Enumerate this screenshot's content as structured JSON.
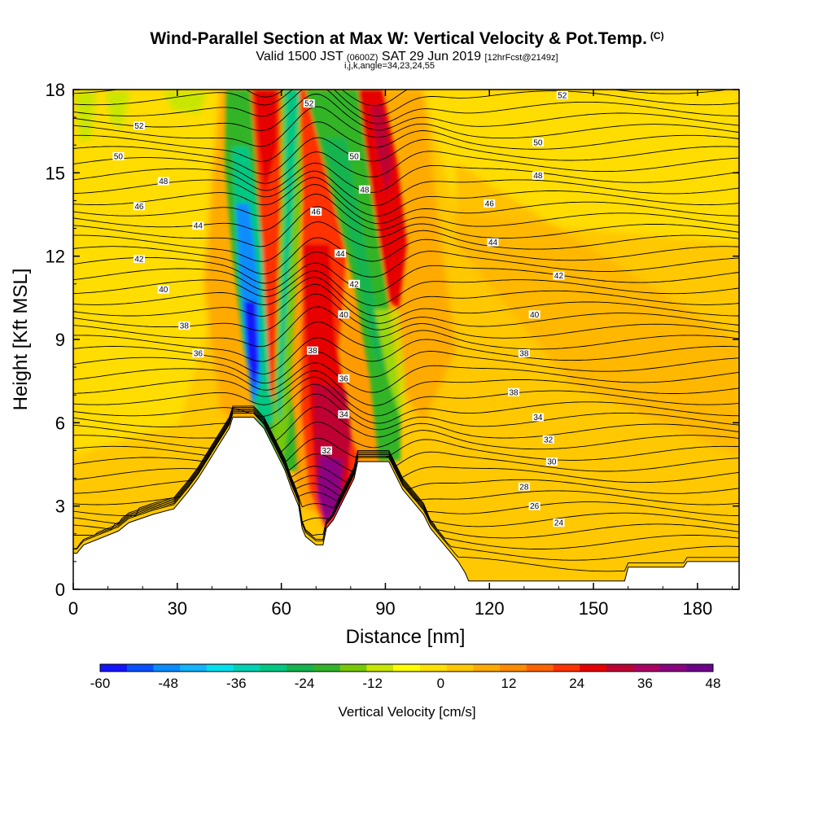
{
  "chart_data": {
    "type": "heatmap",
    "title": "Wind-Parallel Section at Max W: Vertical Velocity & Pot.Temp.",
    "copyright": "(C)",
    "subtitle_main": "Valid 1500 JST",
    "subtitle_utc": "(0600Z)",
    "subtitle_date": "SAT 29 Jun 2019",
    "subtitle_fcst": "[12hrFcst@2149z]",
    "subtitle2": "i,j,k,angle=34,23,24,55",
    "xlabel": "Distance [nm]",
    "ylabel": "Height [Kft MSL]",
    "xlim": [
      0,
      192
    ],
    "ylim": [
      0,
      18
    ],
    "xticks": [
      "0",
      "30",
      "60",
      "90",
      "120",
      "150",
      "180"
    ],
    "yticks": [
      "0",
      "3",
      "6",
      "9",
      "12",
      "15",
      "18"
    ],
    "colorbar_label": "Vertical Velocity [cm/s]",
    "colorbar_ticks": [
      "-60",
      "-48",
      "-36",
      "-24",
      "-12",
      "0",
      "12",
      "24",
      "36",
      "48"
    ],
    "colorbar_range": [
      -60,
      48
    ],
    "colorbar_colors": [
      "#1414ff",
      "#0a50ff",
      "#0a8cff",
      "#14b4ff",
      "#00e1f0",
      "#00d2b4",
      "#00c882",
      "#14b450",
      "#32b428",
      "#78c80a",
      "#c8e600",
      "#ffff00",
      "#ffe100",
      "#ffc800",
      "#ffaa00",
      "#ff8c00",
      "#ff6400",
      "#ff3200",
      "#e60000",
      "#be0032",
      "#aa0064",
      "#8c0082",
      "#6e008c"
    ],
    "terrain_profile": [
      [
        0,
        1.3
      ],
      [
        1,
        1.3
      ],
      [
        3,
        1.6
      ],
      [
        7,
        1.8
      ],
      [
        13,
        2.1
      ],
      [
        16,
        2.4
      ],
      [
        23,
        2.7
      ],
      [
        29,
        2.9
      ],
      [
        33,
        3.5
      ],
      [
        36,
        4.0
      ],
      [
        39,
        4.6
      ],
      [
        42,
        5.2
      ],
      [
        45,
        5.8
      ],
      [
        46,
        6.2
      ],
      [
        52,
        6.2
      ],
      [
        55,
        5.8
      ],
      [
        57,
        5.3
      ],
      [
        59,
        4.8
      ],
      [
        61,
        4.3
      ],
      [
        63,
        3.6
      ],
      [
        65,
        3.0
      ],
      [
        66,
        2.2
      ],
      [
        67,
        1.9
      ],
      [
        70,
        1.6
      ],
      [
        72,
        1.6
      ],
      [
        73,
        2.2
      ],
      [
        75,
        2.5
      ],
      [
        77,
        3.0
      ],
      [
        79,
        3.5
      ],
      [
        81,
        4.0
      ],
      [
        82,
        4.6
      ],
      [
        91,
        4.6
      ],
      [
        95,
        3.6
      ],
      [
        101,
        2.7
      ],
      [
        103,
        2.2
      ],
      [
        105,
        1.9
      ],
      [
        107,
        1.6
      ],
      [
        109,
        1.3
      ],
      [
        111,
        1.0
      ],
      [
        113,
        0.6
      ],
      [
        114,
        0.3
      ],
      [
        159,
        0.3
      ],
      [
        160,
        0.8
      ],
      [
        176,
        0.8
      ],
      [
        177,
        1.0
      ],
      [
        192,
        1.0
      ]
    ],
    "contour_labels": [
      {
        "text": "52",
        "x": 19,
        "y": 16.7
      },
      {
        "text": "50",
        "x": 13,
        "y": 15.6
      },
      {
        "text": "48",
        "x": 26,
        "y": 14.7
      },
      {
        "text": "46",
        "x": 19,
        "y": 13.8
      },
      {
        "text": "44",
        "x": 36,
        "y": 13.1
      },
      {
        "text": "42",
        "x": 19,
        "y": 11.9
      },
      {
        "text": "40",
        "x": 26,
        "y": 10.8
      },
      {
        "text": "38",
        "x": 32,
        "y": 9.5
      },
      {
        "text": "36",
        "x": 36,
        "y": 8.5
      },
      {
        "text": "52",
        "x": 68,
        "y": 17.5
      },
      {
        "text": "50",
        "x": 81,
        "y": 15.6
      },
      {
        "text": "48",
        "x": 84,
        "y": 14.4
      },
      {
        "text": "46",
        "x": 70,
        "y": 13.6
      },
      {
        "text": "44",
        "x": 77,
        "y": 12.1
      },
      {
        "text": "42",
        "x": 81,
        "y": 11.0
      },
      {
        "text": "40",
        "x": 78,
        "y": 9.9
      },
      {
        "text": "38",
        "x": 69,
        "y": 8.6
      },
      {
        "text": "36",
        "x": 78,
        "y": 7.6
      },
      {
        "text": "34",
        "x": 78,
        "y": 6.3
      },
      {
        "text": "32",
        "x": 73,
        "y": 5.0
      },
      {
        "text": "52",
        "x": 141,
        "y": 17.8
      },
      {
        "text": "50",
        "x": 134,
        "y": 16.1
      },
      {
        "text": "48",
        "x": 134,
        "y": 14.9
      },
      {
        "text": "46",
        "x": 120,
        "y": 13.9
      },
      {
        "text": "44",
        "x": 121,
        "y": 12.5
      },
      {
        "text": "42",
        "x": 140,
        "y": 11.3
      },
      {
        "text": "40",
        "x": 133,
        "y": 9.9
      },
      {
        "text": "38",
        "x": 130,
        "y": 8.5
      },
      {
        "text": "38",
        "x": 127,
        "y": 7.1
      },
      {
        "text": "34",
        "x": 134,
        "y": 6.2
      },
      {
        "text": "32",
        "x": 137,
        "y": 5.4
      },
      {
        "text": "30",
        "x": 138,
        "y": 4.6
      },
      {
        "text": "28",
        "x": 130,
        "y": 3.7
      },
      {
        "text": "26",
        "x": 133,
        "y": 3.0
      },
      {
        "text": "24",
        "x": 140,
        "y": 2.4
      }
    ]
  }
}
